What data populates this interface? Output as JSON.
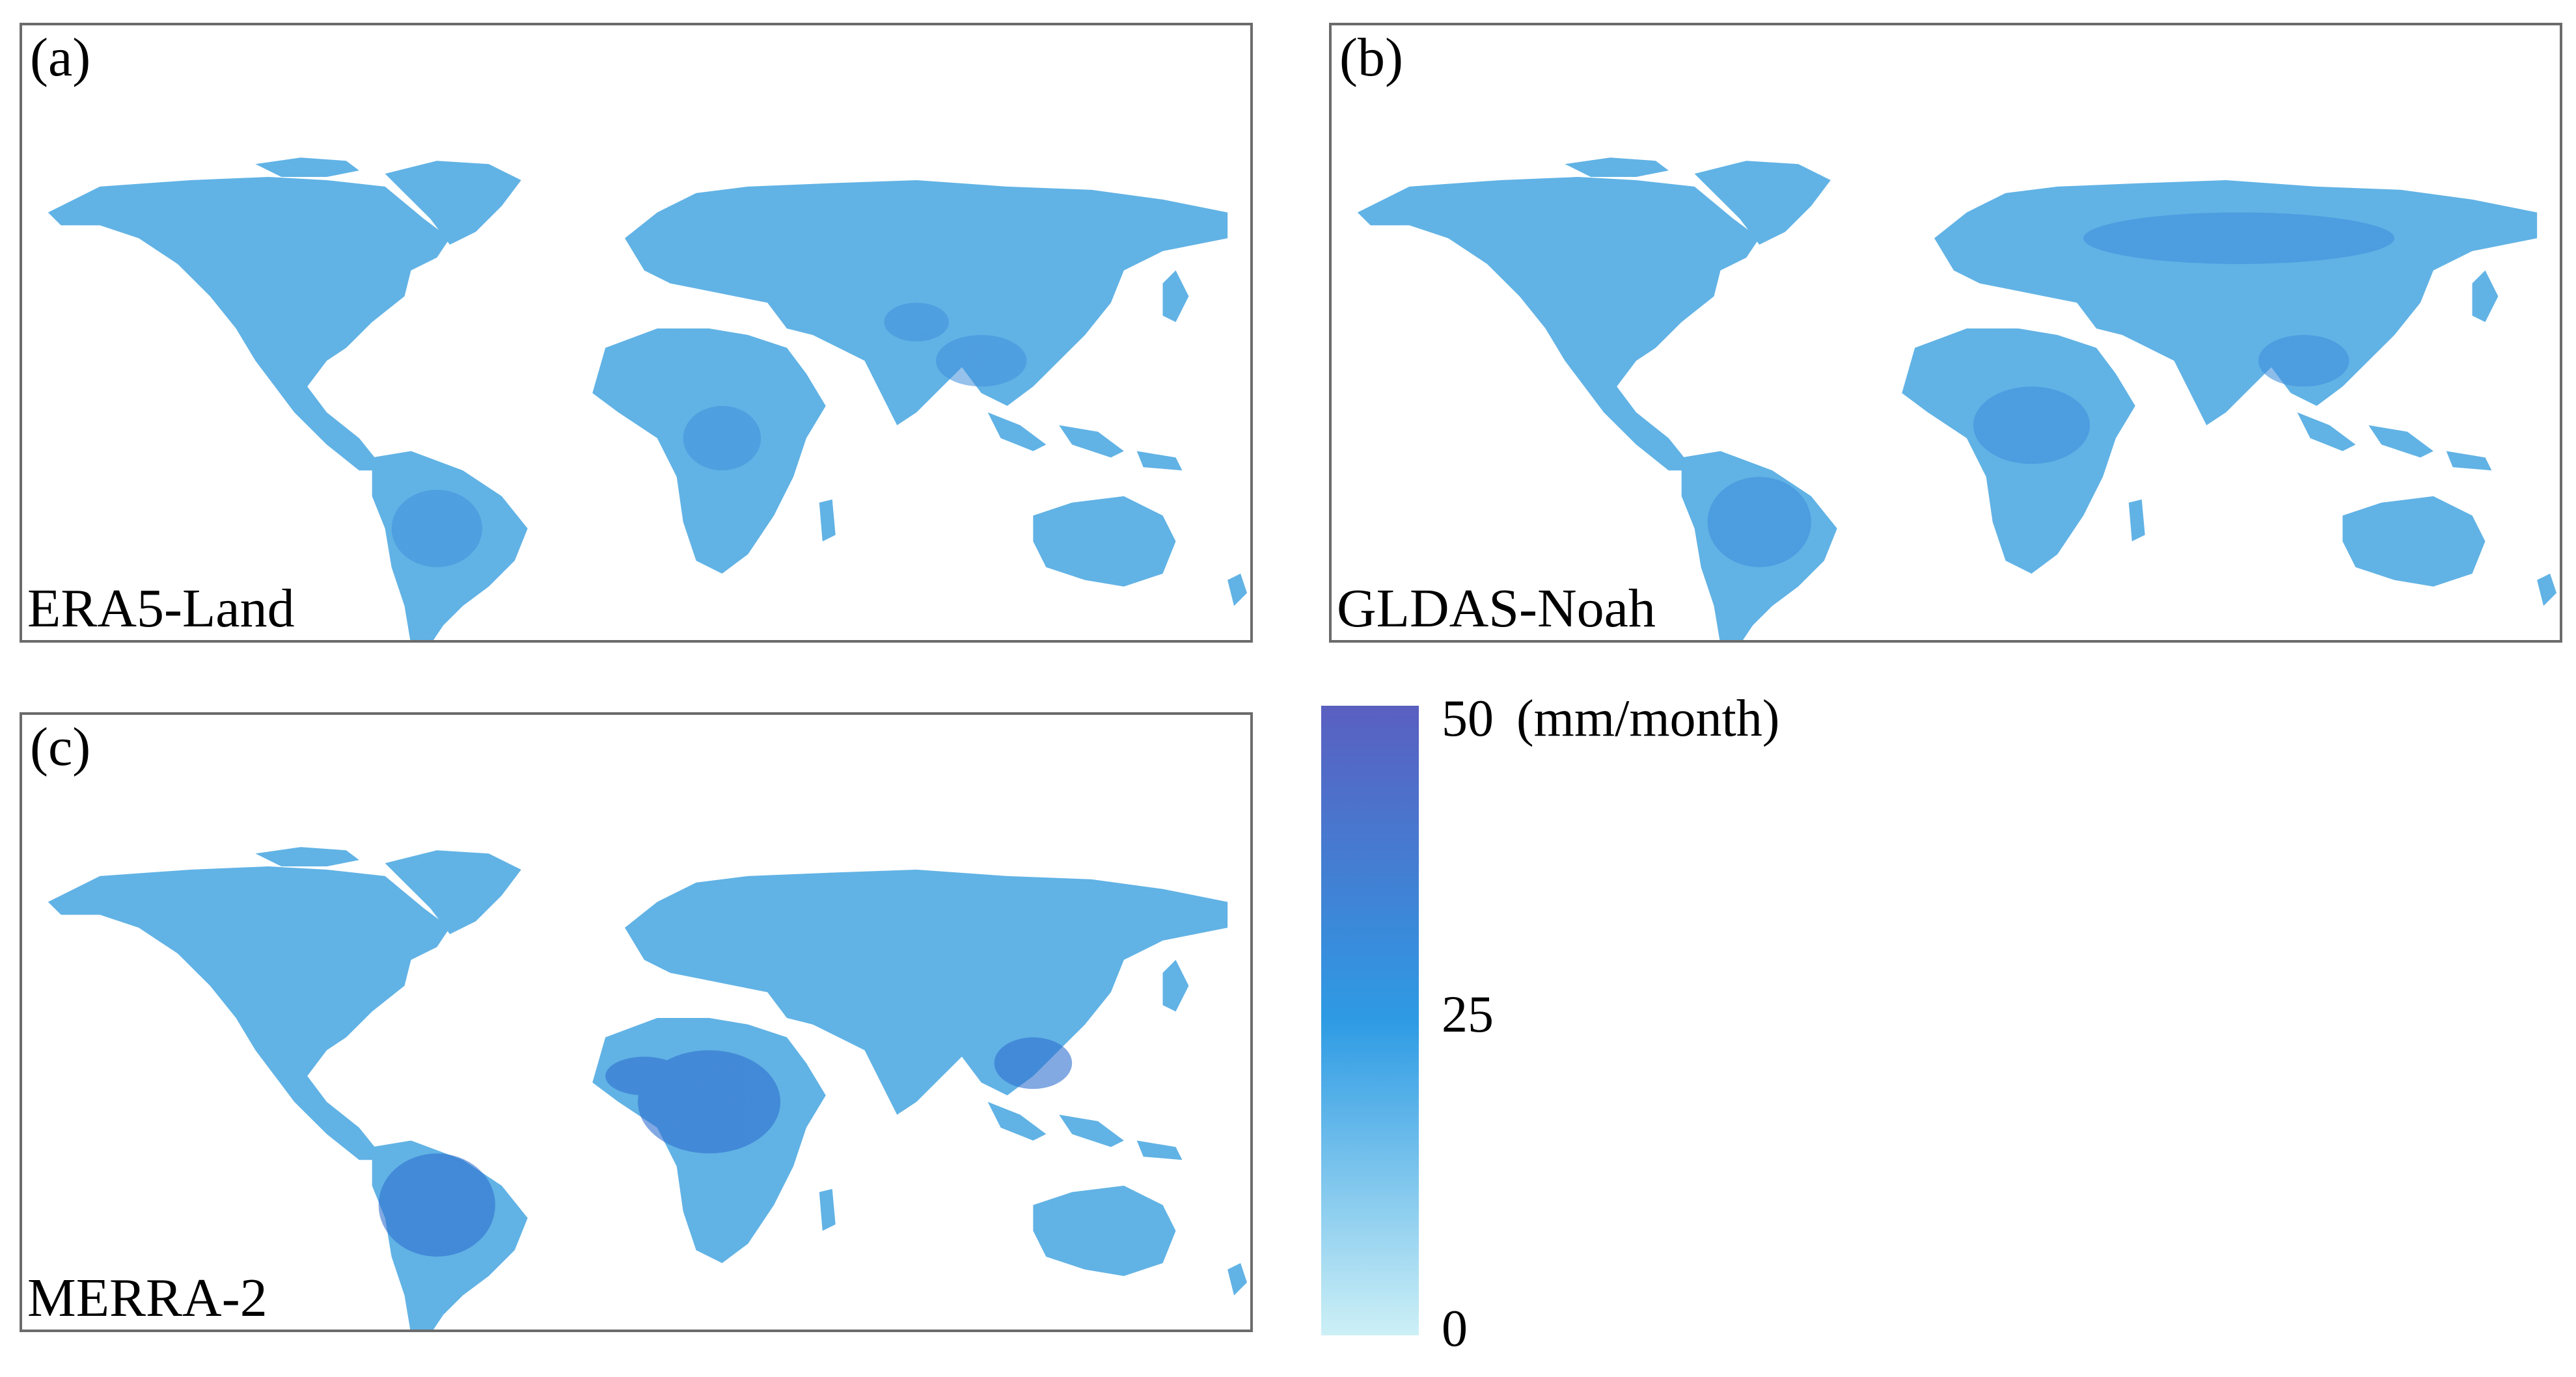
{
  "panels": [
    {
      "id": "a",
      "letter": "(a)",
      "dataset": "ERA5-Land"
    },
    {
      "id": "b",
      "letter": "(b)",
      "dataset": "GLDAS-Noah"
    },
    {
      "id": "c",
      "letter": "(c)",
      "dataset": "MERRA-2"
    }
  ],
  "colorbar": {
    "min_label": "0",
    "mid_label": "25",
    "max_label": "50",
    "unit": "(mm/month)",
    "min_color": "#cdf0f6",
    "mid_color": "#2e9be4",
    "max_color": "#5a5fc0"
  },
  "colors": {
    "panel_border": "#6b6b6b",
    "land_light": "#8ed4ee",
    "land_base": "#5fb8e8",
    "land_dark": "#3f8fdc",
    "land_darkest": "#2f6fcf"
  }
}
